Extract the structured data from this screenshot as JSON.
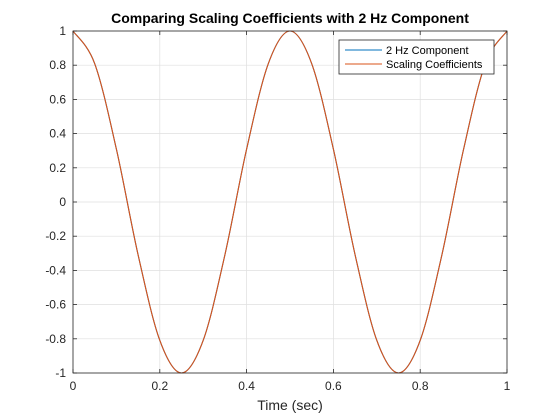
{
  "chart_data": {
    "type": "line",
    "title": "Comparing Scaling Coefficients with 2 Hz Component",
    "xlabel": "Time (sec)",
    "ylabel": "",
    "xlim": [
      0,
      1
    ],
    "ylim": [
      -1,
      1
    ],
    "xticks": [
      "0",
      "0.2",
      "0.4",
      "0.6",
      "0.8",
      "1"
    ],
    "yticks": [
      "1",
      "0.8",
      "0.6",
      "0.4",
      "0.2",
      "0",
      "-0.2",
      "-0.4",
      "-0.6",
      "-0.8",
      "-1"
    ],
    "grid": true,
    "legend_position": "top-right",
    "x": [
      0,
      0.05,
      0.1,
      0.15,
      0.2,
      0.25,
      0.3,
      0.35,
      0.4,
      0.45,
      0.5,
      0.55,
      0.6,
      0.65,
      0.7,
      0.75,
      0.8,
      0.85,
      0.9,
      0.95,
      1
    ],
    "series": [
      {
        "name": "2 Hz Component",
        "color": "#0072BD",
        "values": [
          1,
          0.809,
          0.309,
          -0.309,
          -0.809,
          -1,
          -0.809,
          -0.309,
          0.309,
          0.809,
          1,
          0.809,
          0.309,
          -0.309,
          -0.809,
          -1,
          -0.809,
          -0.309,
          0.309,
          0.809,
          1
        ]
      },
      {
        "name": "Scaling Coefficients",
        "color": "#D95319",
        "values": [
          1,
          0.809,
          0.309,
          -0.309,
          -0.809,
          -1,
          -0.809,
          -0.309,
          0.309,
          0.809,
          1,
          0.809,
          0.309,
          -0.309,
          -0.809,
          -1,
          -0.809,
          -0.309,
          0.309,
          0.809,
          1
        ]
      }
    ]
  }
}
